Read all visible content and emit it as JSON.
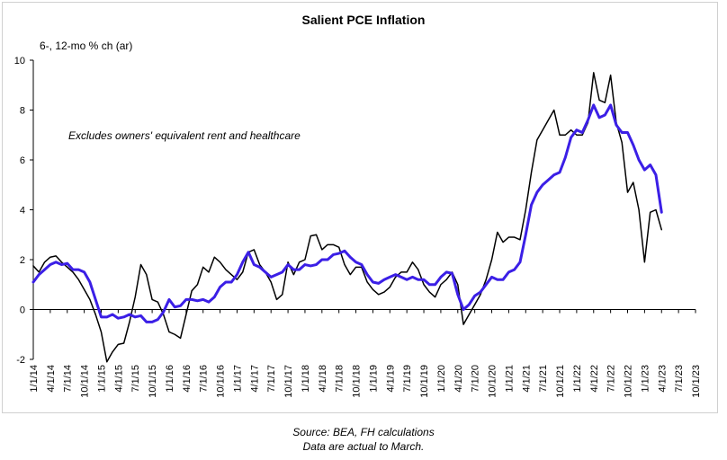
{
  "chart_data": {
    "type": "line",
    "title": "Salient PCE Inflation",
    "ylabel": "6-, 12-mo % ch (ar)",
    "annotation": "Excludes owners' equivalent rent and healthcare",
    "ylim": [
      -2,
      10
    ],
    "yticks": [
      -2,
      0,
      2,
      4,
      6,
      8,
      10
    ],
    "x_axis_range": [
      "2014-01",
      "2023-10"
    ],
    "xtick_labels": [
      "1/1/14",
      "4/1/14",
      "7/1/14",
      "10/1/14",
      "1/1/15",
      "4/1/15",
      "7/1/15",
      "10/1/15",
      "1/1/16",
      "4/1/16",
      "7/1/16",
      "10/1/16",
      "1/1/17",
      "4/1/17",
      "7/1/17",
      "10/1/17",
      "1/1/18",
      "4/1/18",
      "7/1/18",
      "10/1/18",
      "1/1/19",
      "4/1/19",
      "7/1/19",
      "10/1/19",
      "1/1/20",
      "4/1/20",
      "7/1/20",
      "10/1/20",
      "1/1/21",
      "4/1/21",
      "7/1/21",
      "10/1/21",
      "1/1/22",
      "4/1/22",
      "7/1/22",
      "10/1/22",
      "1/1/23",
      "4/1/23",
      "7/1/23",
      "10/1/23"
    ],
    "grid": false,
    "legend": "none",
    "series": [
      {
        "color": "#000000",
        "style": "thin",
        "start": "2014-01",
        "values": [
          1.75,
          1.5,
          1.9,
          2.1,
          2.15,
          1.9,
          1.7,
          1.5,
          1.2,
          0.8,
          0.4,
          -0.2,
          -0.9,
          -2.1,
          -1.7,
          -1.4,
          -1.35,
          -0.5,
          0.5,
          1.8,
          1.4,
          0.4,
          0.3,
          -0.2,
          -0.9,
          -1.0,
          -1.15,
          -0.2,
          0.75,
          1.0,
          1.7,
          1.5,
          2.1,
          1.9,
          1.6,
          1.4,
          1.2,
          1.5,
          2.3,
          2.4,
          1.8,
          1.5,
          1.1,
          0.4,
          0.6,
          1.9,
          1.4,
          1.9,
          2.0,
          2.95,
          3.0,
          2.4,
          2.6,
          2.6,
          2.5,
          1.8,
          1.4,
          1.7,
          1.7,
          1.1,
          0.8,
          0.6,
          0.7,
          0.9,
          1.3,
          1.5,
          1.5,
          1.9,
          1.6,
          1.0,
          0.7,
          0.5,
          1.0,
          1.2,
          1.5,
          1.0,
          -0.6,
          -0.2,
          0.2,
          0.6,
          1.2,
          2.0,
          3.1,
          2.7,
          2.9,
          2.9,
          2.8,
          4.0,
          5.5,
          6.8,
          7.2,
          7.6,
          8.0,
          7.0,
          7.0,
          7.2,
          7.0,
          7.0,
          7.5,
          9.5,
          8.4,
          8.3,
          9.4,
          7.5,
          6.7,
          4.7,
          5.1,
          4.0,
          1.9,
          3.9,
          4.0,
          3.2
        ]
      },
      {
        "color": "#3b1fe6",
        "style": "thick",
        "start": "2014-01",
        "values": [
          1.1,
          1.4,
          1.6,
          1.8,
          1.9,
          1.8,
          1.85,
          1.6,
          1.6,
          1.5,
          1.1,
          0.4,
          -0.3,
          -0.3,
          -0.2,
          -0.35,
          -0.3,
          -0.2,
          -0.3,
          -0.25,
          -0.5,
          -0.5,
          -0.4,
          -0.1,
          0.4,
          0.1,
          0.15,
          0.4,
          0.4,
          0.35,
          0.4,
          0.3,
          0.5,
          0.9,
          1.1,
          1.1,
          1.4,
          1.9,
          2.3,
          1.8,
          1.7,
          1.5,
          1.3,
          1.4,
          1.5,
          1.8,
          1.6,
          1.6,
          1.8,
          1.75,
          1.8,
          2.0,
          2.0,
          2.2,
          2.25,
          2.35,
          2.1,
          1.9,
          1.8,
          1.4,
          1.1,
          1.05,
          1.2,
          1.3,
          1.4,
          1.3,
          1.2,
          1.3,
          1.2,
          1.2,
          1.0,
          1.0,
          1.3,
          1.5,
          1.45,
          0.6,
          0.0,
          0.2,
          0.55,
          0.7,
          1.0,
          1.3,
          1.2,
          1.2,
          1.5,
          1.6,
          1.9,
          3.0,
          4.2,
          4.7,
          5.0,
          5.2,
          5.4,
          5.5,
          6.1,
          6.9,
          7.2,
          7.1,
          7.6,
          8.2,
          7.7,
          7.8,
          8.2,
          7.4,
          7.1,
          7.1,
          6.6,
          6.0,
          5.6,
          5.8,
          5.4,
          3.9
        ]
      }
    ]
  },
  "footer": {
    "source": "Source: BEA, FH calculations",
    "note": "Data are actual to March."
  }
}
